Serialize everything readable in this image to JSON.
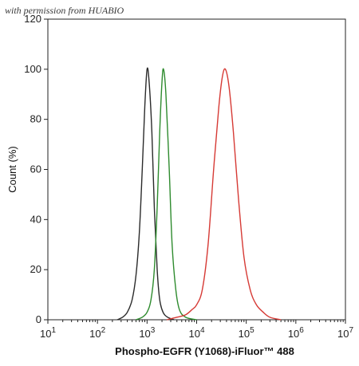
{
  "watermark": "with permission from HUABIO",
  "chart_data": {
    "type": "line",
    "title": "",
    "xlabel": "Phospho-EGFR (Y1068)-iFluor™ 488",
    "ylabel": "Count  (%)",
    "x_scale": "log",
    "xlim": [
      10,
      10000000
    ],
    "ylim": [
      0,
      120
    ],
    "x_ticks": [
      {
        "value": 10,
        "base": "10",
        "exp": "1"
      },
      {
        "value": 100,
        "base": "10",
        "exp": "2"
      },
      {
        "value": 1000,
        "base": "10",
        "exp": "3"
      },
      {
        "value": 10000,
        "base": "10",
        "exp": "4"
      },
      {
        "value": 100000,
        "base": "10",
        "exp": "5"
      },
      {
        "value": 1000000,
        "base": "10",
        "exp": "6"
      },
      {
        "value": 10000000,
        "base": "10",
        "exp": "7"
      }
    ],
    "y_ticks": [
      "0",
      "20",
      "40",
      "60",
      "80",
      "100",
      "120"
    ],
    "grid": false,
    "series": [
      {
        "color": "#2b2b2b",
        "points": [
          [
            250,
            0
          ],
          [
            320,
            1
          ],
          [
            400,
            3
          ],
          [
            500,
            8
          ],
          [
            600,
            18
          ],
          [
            700,
            35
          ],
          [
            800,
            60
          ],
          [
            900,
            85
          ],
          [
            1000,
            100
          ],
          [
            1100,
            95
          ],
          [
            1250,
            75
          ],
          [
            1400,
            45
          ],
          [
            1600,
            20
          ],
          [
            1800,
            8
          ],
          [
            2100,
            3
          ],
          [
            2600,
            1
          ],
          [
            3500,
            0
          ]
        ]
      },
      {
        "color": "#2e8b2e",
        "points": [
          [
            600,
            0
          ],
          [
            800,
            1
          ],
          [
            1000,
            3
          ],
          [
            1200,
            8
          ],
          [
            1400,
            20
          ],
          [
            1600,
            45
          ],
          [
            1800,
            75
          ],
          [
            2000,
            95
          ],
          [
            2150,
            100
          ],
          [
            2400,
            90
          ],
          [
            2800,
            60
          ],
          [
            3200,
            30
          ],
          [
            3800,
            12
          ],
          [
            4500,
            4
          ],
          [
            6000,
            1
          ],
          [
            10000,
            0
          ]
        ]
      },
      {
        "color": "#d63a35",
        "points": [
          [
            2500,
            0
          ],
          [
            4000,
            1
          ],
          [
            6000,
            2
          ],
          [
            8000,
            4
          ],
          [
            10000,
            6
          ],
          [
            13000,
            12
          ],
          [
            17000,
            30
          ],
          [
            22000,
            60
          ],
          [
            28000,
            85
          ],
          [
            33000,
            97
          ],
          [
            38000,
            100
          ],
          [
            45000,
            93
          ],
          [
            55000,
            75
          ],
          [
            70000,
            48
          ],
          [
            90000,
            25
          ],
          [
            120000,
            12
          ],
          [
            160000,
            6
          ],
          [
            220000,
            3
          ],
          [
            300000,
            1
          ],
          [
            500000,
            0
          ]
        ]
      }
    ]
  }
}
